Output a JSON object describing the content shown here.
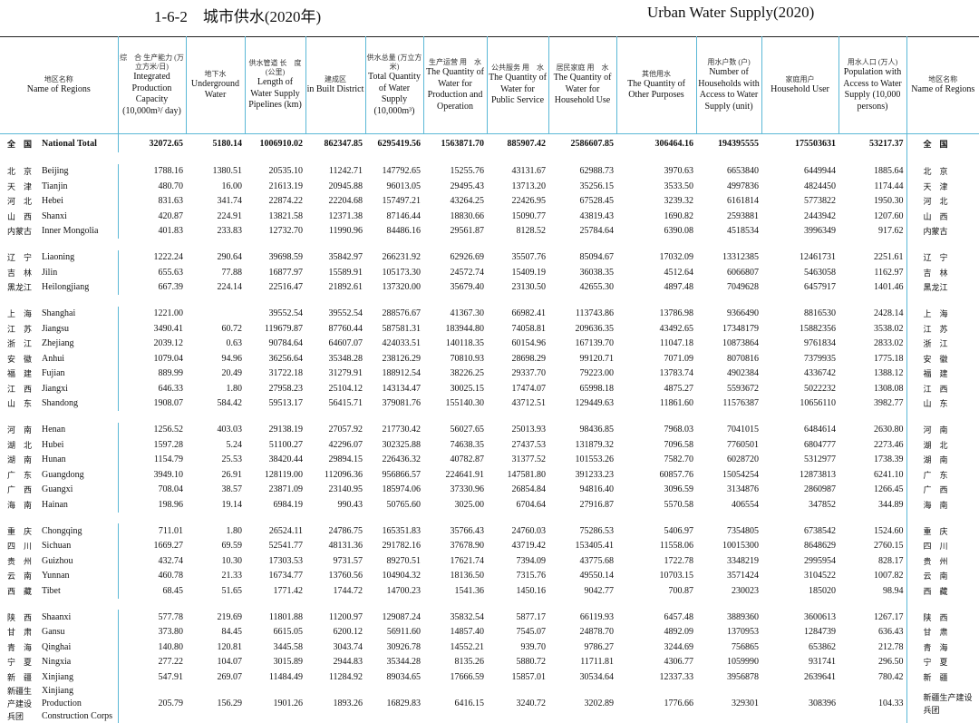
{
  "header": {
    "title_cn": "1-6-2　城市供水(2020年)",
    "title_en": "Urban Water Supply(2020)"
  },
  "table": {
    "region_header": {
      "cn": "地区名称",
      "en": "Name of Regions"
    },
    "columns": [
      {
        "cn": "综　合 生产能力 (万立方米/日)",
        "en": "Integrated Production Capacity (10,000m³/ day)"
      },
      {
        "cn": "地下水",
        "en": "Underground Water"
      },
      {
        "cn": "供水管道 长　度 (公里)",
        "en": "Length of Water Supply Pipelines (km)"
      },
      {
        "cn": "建成区",
        "en": "in Built District"
      },
      {
        "cn": "供水总量 (万立方米)",
        "en": "Total Quantity of Water Supply (10,000m³)"
      },
      {
        "cn": "生产运营 用　水",
        "en": "The Quantity of Water for Production and Operation"
      },
      {
        "cn": "公共服务 用　水",
        "en": "The Quantity of Water for Public Service"
      },
      {
        "cn": "居民家庭 用　水",
        "en": "The Quantity of Water for Household Use"
      },
      {
        "cn": "其他用水",
        "en": "The Quantity of Other Purposes"
      },
      {
        "cn": "用水户数 (户)",
        "en": "Number of Households with Access to Water Supply (unit)"
      },
      {
        "cn": "家庭用户",
        "en": "Household User"
      },
      {
        "cn": "用水人口 (万人)",
        "en": "Population with Access to Water Supply (10,000 persons)"
      }
    ],
    "total": [
      "全　国",
      "National Total",
      "32072.65",
      "5180.14",
      "1006910.02",
      "862347.85",
      "6295419.56",
      "1563871.70",
      "885907.42",
      "2586607.85",
      "306464.16",
      "194395555",
      "175503631",
      "53217.37"
    ],
    "groups": [
      {
        "rows": [
          [
            "北　京",
            "Beijing",
            "1788.16",
            "1380.51",
            "20535.10",
            "11242.71",
            "147792.65",
            "15255.76",
            "43131.67",
            "62988.73",
            "3970.63",
            "6653840",
            "6449944",
            "1885.64"
          ],
          [
            "天　津",
            "Tianjin",
            "480.70",
            "16.00",
            "21613.19",
            "20945.88",
            "96013.05",
            "29495.43",
            "13713.20",
            "35256.15",
            "3533.50",
            "4997836",
            "4824450",
            "1174.44"
          ],
          [
            "河　北",
            "Hebei",
            "831.63",
            "341.74",
            "22874.22",
            "22204.68",
            "157497.21",
            "43264.25",
            "22426.95",
            "67528.45",
            "3239.32",
            "6161814",
            "5773822",
            "1950.30"
          ],
          [
            "山　西",
            "Shanxi",
            "420.87",
            "224.91",
            "13821.58",
            "12371.38",
            "87146.44",
            "18830.66",
            "15090.77",
            "43819.43",
            "1690.82",
            "2593881",
            "2443942",
            "1207.60"
          ],
          [
            "内蒙古",
            "Inner Mongolia",
            "401.83",
            "233.83",
            "12732.70",
            "11990.96",
            "84486.16",
            "29561.87",
            "8128.52",
            "25784.64",
            "6390.08",
            "4518534",
            "3996349",
            "917.62"
          ]
        ]
      },
      {
        "rows": [
          [
            "辽　宁",
            "Liaoning",
            "1222.24",
            "290.64",
            "39698.59",
            "35842.97",
            "266231.92",
            "62926.69",
            "35507.76",
            "85094.67",
            "17032.09",
            "13312385",
            "12461731",
            "2251.61"
          ],
          [
            "吉　林",
            "Jilin",
            "655.63",
            "77.88",
            "16877.97",
            "15589.91",
            "105173.30",
            "24572.74",
            "15409.19",
            "36038.35",
            "4512.64",
            "6066807",
            "5463058",
            "1162.97"
          ],
          [
            "黑龙江",
            "Heilongjiang",
            "667.39",
            "224.14",
            "22516.47",
            "21892.61",
            "137320.00",
            "35679.40",
            "23130.50",
            "42655.30",
            "4897.48",
            "7049628",
            "6457917",
            "1401.46"
          ]
        ]
      },
      {
        "rows": [
          [
            "上　海",
            "Shanghai",
            "1221.00",
            null,
            "39552.54",
            "39552.54",
            "288576.67",
            "41367.30",
            "66982.41",
            "113743.86",
            "13786.98",
            "9366490",
            "8816530",
            "2428.14"
          ],
          [
            "江　苏",
            "Jiangsu",
            "3490.41",
            "60.72",
            "119679.87",
            "87760.44",
            "587581.31",
            "183944.80",
            "74058.81",
            "209636.35",
            "43492.65",
            "17348179",
            "15882356",
            "3538.02"
          ],
          [
            "浙　江",
            "Zhejiang",
            "2039.12",
            "0.63",
            "90784.64",
            "64607.07",
            "424033.51",
            "140118.35",
            "60154.96",
            "167139.70",
            "11047.18",
            "10873864",
            "9761834",
            "2833.02"
          ],
          [
            "安　徽",
            "Anhui",
            "1079.04",
            "94.96",
            "36256.64",
            "35348.28",
            "238126.29",
            "70810.93",
            "28698.29",
            "99120.71",
            "7071.09",
            "8070816",
            "7379935",
            "1775.18"
          ],
          [
            "福　建",
            "Fujian",
            "889.99",
            "20.49",
            "31722.18",
            "31279.91",
            "188912.54",
            "38226.25",
            "29337.70",
            "79223.00",
            "13783.74",
            "4902384",
            "4336742",
            "1388.12"
          ],
          [
            "江　西",
            "Jiangxi",
            "646.33",
            "1.80",
            "27958.23",
            "25104.12",
            "143134.47",
            "30025.15",
            "17474.07",
            "65998.18",
            "4875.27",
            "5593672",
            "5022232",
            "1308.08"
          ],
          [
            "山　东",
            "Shandong",
            "1908.07",
            "584.42",
            "59513.17",
            "56415.71",
            "379081.76",
            "155140.30",
            "43712.51",
            "129449.63",
            "11861.60",
            "11576387",
            "10656110",
            "3982.77"
          ]
        ]
      },
      {
        "rows": [
          [
            "河　南",
            "Henan",
            "1256.52",
            "403.03",
            "29138.19",
            "27057.92",
            "217730.42",
            "56027.65",
            "25013.93",
            "98436.85",
            "7968.03",
            "7041015",
            "6484614",
            "2630.80"
          ],
          [
            "湖　北",
            "Hubei",
            "1597.28",
            "5.24",
            "51100.27",
            "42296.07",
            "302325.88",
            "74638.35",
            "27437.53",
            "131879.32",
            "7096.58",
            "7760501",
            "6804777",
            "2273.46"
          ],
          [
            "湖　南",
            "Hunan",
            "1154.79",
            "25.53",
            "38420.44",
            "29894.15",
            "226436.32",
            "40782.87",
            "31377.52",
            "101553.26",
            "7582.70",
            "6028720",
            "5312977",
            "1738.39"
          ],
          [
            "广　东",
            "Guangdong",
            "3949.10",
            "26.91",
            "128119.00",
            "112096.36",
            "956866.57",
            "224641.91",
            "147581.80",
            "391233.23",
            "60857.76",
            "15054254",
            "12873813",
            "6241.10"
          ],
          [
            "广　西",
            "Guangxi",
            "708.04",
            "38.57",
            "23871.09",
            "23140.95",
            "185974.06",
            "37330.96",
            "26854.84",
            "94816.40",
            "3096.59",
            "3134876",
            "2860987",
            "1266.45"
          ],
          [
            "海　南",
            "Hainan",
            "198.96",
            "19.14",
            "6984.19",
            "990.43",
            "50765.60",
            "3025.00",
            "6704.64",
            "27916.87",
            "5570.58",
            "406554",
            "347852",
            "344.89"
          ]
        ]
      },
      {
        "rows": [
          [
            "重　庆",
            "Chongqing",
            "711.01",
            "1.80",
            "26524.11",
            "24786.75",
            "165351.83",
            "35766.43",
            "24760.03",
            "75286.53",
            "5406.97",
            "7354805",
            "6738542",
            "1524.60"
          ],
          [
            "四　川",
            "Sichuan",
            "1669.27",
            "69.59",
            "52541.77",
            "48131.36",
            "291782.16",
            "37678.90",
            "43719.42",
            "153405.41",
            "11558.06",
            "10015300",
            "8648629",
            "2760.15"
          ],
          [
            "贵　州",
            "Guizhou",
            "432.74",
            "10.30",
            "17303.53",
            "9731.57",
            "89270.51",
            "17621.74",
            "7394.09",
            "43775.68",
            "1722.78",
            "3348219",
            "2995954",
            "828.17"
          ],
          [
            "云　南",
            "Yunnan",
            "460.78",
            "21.33",
            "16734.77",
            "13760.56",
            "104904.32",
            "18136.50",
            "7315.76",
            "49550.14",
            "10703.15",
            "3571424",
            "3104522",
            "1007.82"
          ],
          [
            "西　藏",
            "Tibet",
            "68.45",
            "51.65",
            "1771.42",
            "1744.72",
            "14700.23",
            "1541.36",
            "1450.16",
            "9042.77",
            "700.87",
            "230023",
            "185020",
            "98.94"
          ]
        ]
      },
      {
        "rows": [
          [
            "陕　西",
            "Shaanxi",
            "577.78",
            "219.69",
            "11801.88",
            "11200.97",
            "129087.24",
            "35832.54",
            "5877.17",
            "66119.93",
            "6457.48",
            "3889360",
            "3600613",
            "1267.17"
          ],
          [
            "甘　肃",
            "Gansu",
            "373.80",
            "84.45",
            "6615.05",
            "6200.12",
            "56911.60",
            "14857.40",
            "7545.07",
            "24878.70",
            "4892.09",
            "1370953",
            "1284739",
            "636.43"
          ],
          [
            "青　海",
            "Qinghai",
            "140.80",
            "120.81",
            "3445.58",
            "3043.74",
            "30926.78",
            "14552.21",
            "939.70",
            "9786.27",
            "3244.69",
            "756865",
            "653862",
            "212.78"
          ],
          [
            "宁　夏",
            "Ningxia",
            "277.22",
            "104.07",
            "3015.89",
            "2944.83",
            "35344.28",
            "8135.26",
            "5880.72",
            "11711.81",
            "4306.77",
            "1059990",
            "931741",
            "296.50"
          ],
          [
            "新　疆",
            "Xinjiang",
            "547.91",
            "269.07",
            "11484.49",
            "11284.92",
            "89034.65",
            "17666.59",
            "15857.01",
            "30534.64",
            "12337.33",
            "3956878",
            "2639641",
            "780.42"
          ],
          [
            "新疆生产建设兵团",
            "Xinjiang Production Construction Corps",
            "205.79",
            "156.29",
            "1901.26",
            "1893.26",
            "16829.83",
            "6416.15",
            "3240.72",
            "3202.89",
            "1776.66",
            "329301",
            "308396",
            "104.33"
          ]
        ]
      }
    ]
  }
}
